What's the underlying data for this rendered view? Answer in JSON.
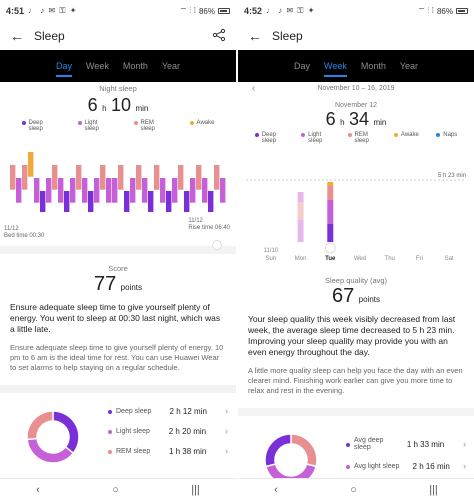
{
  "left": {
    "status": {
      "time": "4:51",
      "icons": "♩ ♪ ✉ ⚿ ✦",
      "battery": "86%",
      "signal": "⌔ ⫶ ⁞"
    },
    "appbar": {
      "title": "Sleep",
      "back": "←",
      "share": "⋰"
    },
    "tabs": [
      {
        "label": "Day",
        "active": true
      },
      {
        "label": "Week",
        "active": false
      },
      {
        "label": "Month",
        "active": false
      },
      {
        "label": "Year",
        "active": false
      }
    ],
    "night": {
      "label": "Night sleep",
      "hours": "6",
      "h": "h",
      "mins": "10",
      "min": "min",
      "legend": [
        {
          "label": "Deep sleep",
          "color": "#7b2fd6"
        },
        {
          "label": "Light sleep",
          "color": "#c660d8"
        },
        {
          "label": "REM sleep",
          "color": "#e88f8f"
        },
        {
          "label": "Awake",
          "color": "#f2a93b"
        }
      ],
      "start_date": "11/12",
      "start_label": "Bed time 00:30",
      "end_date": "11/12",
      "end_label": "Rise time 06:40"
    },
    "score": {
      "label": "Score",
      "value": "77",
      "unit": "points",
      "text1": "Ensure adequate sleep time to give yourself plenty of energy. You went to sleep at 00:30 last night, which was a little late.",
      "text2": "Ensure adequate sleep time to give yourself plenty of energy. 10 pm to 6 am is the ideal time for rest. You can use Huawei Wear to set alarms to help staying on a regular schedule."
    },
    "summary": {
      "rows": [
        {
          "label": "Deep sleep",
          "value": "2 h 12 min",
          "color": "#7b2fd6",
          "fraction": 0.357
        },
        {
          "label": "Light sleep",
          "value": "2 h 20 min",
          "color": "#c660d8",
          "fraction": 0.378
        },
        {
          "label": "REM sleep",
          "value": "1 h 38 min",
          "color": "#e88f8f",
          "fraction": 0.265
        }
      ]
    },
    "nav": {
      "back": "‹",
      "home": "○",
      "recent": "|||"
    }
  },
  "right": {
    "status": {
      "time": "4:52",
      "icons": "♩ ♪ ✉ ⚿ ✦",
      "battery": "86%",
      "signal": "⌔ ⫶ ⁞"
    },
    "appbar": {
      "title": "Sleep",
      "back": "←"
    },
    "tabs": [
      {
        "label": "Day",
        "active": false
      },
      {
        "label": "Week",
        "active": true
      },
      {
        "label": "Month",
        "active": false
      },
      {
        "label": "Year",
        "active": false
      }
    ],
    "week": {
      "range": "November 10 – 16, 2019",
      "prev": "‹",
      "date": "November 12",
      "hours": "6",
      "h": "h",
      "mins": "34",
      "min": "min",
      "legend": [
        {
          "label": "Deep sleep",
          "color": "#7b2fd6"
        },
        {
          "label": "Light sleep",
          "color": "#c660d8"
        },
        {
          "label": "REM sleep",
          "color": "#e88f8f"
        },
        {
          "label": "Awake",
          "color": "#f2a93b"
        },
        {
          "label": "Naps",
          "color": "#2a82e4"
        }
      ],
      "ref_label": "5 h 23 min",
      "date_start": "11/10",
      "days": [
        "Sun",
        "Mon",
        "Tue",
        "Wed",
        "Thu",
        "Fri",
        "Sat"
      ],
      "selected_day": "Tue"
    },
    "quality": {
      "label": "Sleep quality (avg)",
      "value": "67",
      "unit": "points",
      "text1": "Your sleep quality this week visibly decreased from last week, the average sleep time decreased to 5 h 23 min. Improving your sleep quality may provide you with an even energy throughout the day.",
      "text2": "A little more quality sleep can help you face the day with an even clearer mind. Finishing work earlier can give you more time to relax and rest in the evening."
    },
    "summary": {
      "rows": [
        {
          "label": "Avg deep sleep",
          "value": "1 h 33 min",
          "color": "#7b2fd6"
        },
        {
          "label": "Avg light sleep",
          "value": "2 h 16 min",
          "color": "#c660d8"
        }
      ]
    },
    "nav": {
      "back": "‹",
      "home": "○",
      "recent": "|||"
    }
  },
  "colors": {
    "accent": "#2a82e4",
    "deep": "#7b2fd6",
    "light": "#c660d8",
    "rem": "#e88f8f",
    "awake": "#f2a93b"
  }
}
